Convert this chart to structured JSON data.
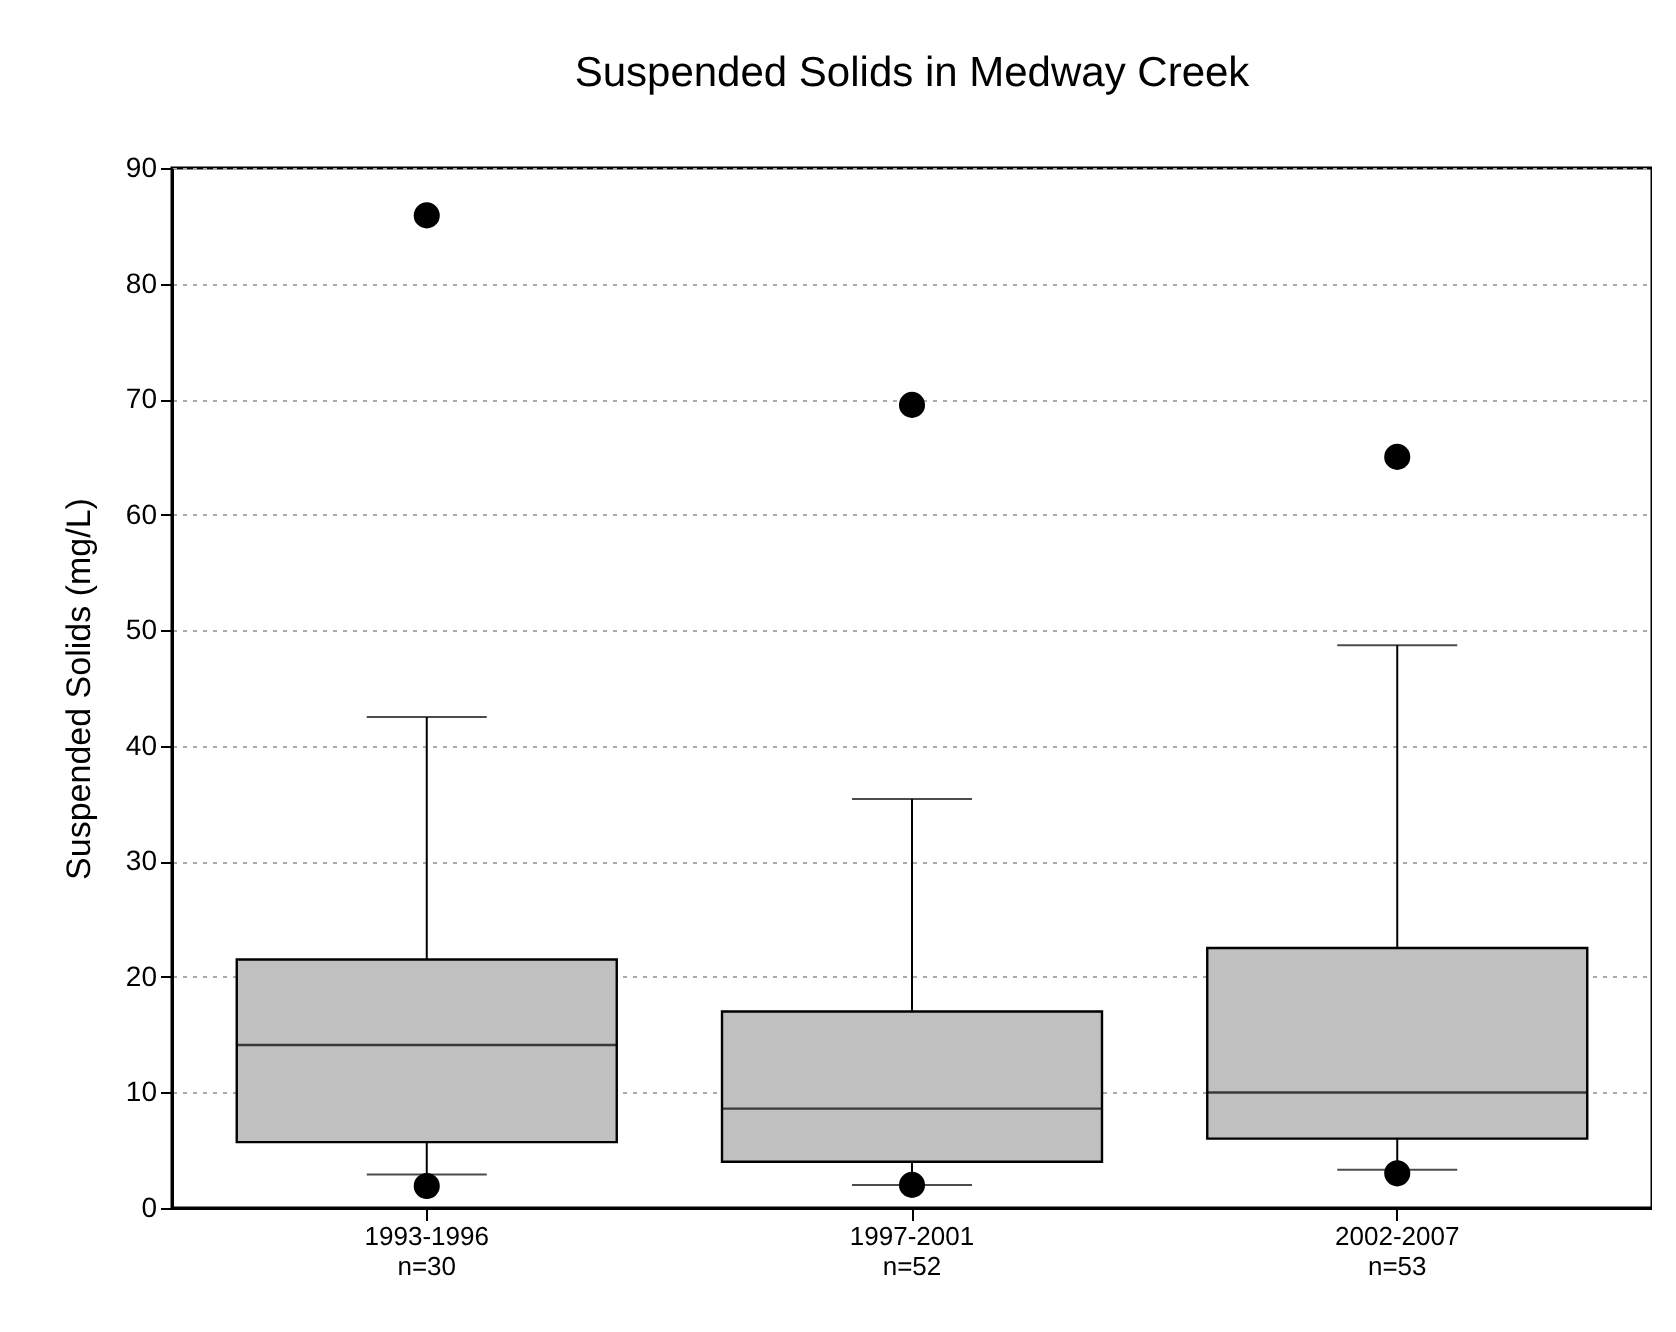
{
  "chart_data": {
    "type": "box",
    "title": "Suspended Solids in Medway Creek",
    "ylabel": "Suspended Solids (mg/L)",
    "categories": [
      "1993-1996\nn=30",
      "1997-2001\nn=52",
      "2002-2007\nn=53"
    ],
    "series": [
      {
        "color": "#c0c0c0",
        "boxes": [
          {
            "low": 2.9,
            "q1": 5.7,
            "median": 14.1,
            "q3": 21.5,
            "high": 42.5,
            "outliers": [
              85.9,
              1.9
            ]
          },
          {
            "low": 2.0,
            "q1": 4.0,
            "median": 8.6,
            "q3": 17.0,
            "high": 35.4,
            "outliers": [
              69.5,
              2.0
            ]
          },
          {
            "low": 3.3,
            "q1": 6.0,
            "median": 10.0,
            "q3": 22.5,
            "high": 48.7,
            "outliers": [
              65.0,
              3.0
            ]
          }
        ]
      }
    ],
    "ylim": [
      0,
      90
    ],
    "yticks": [
      0,
      10,
      20,
      30,
      40,
      50,
      60,
      70,
      80,
      90
    ],
    "grid": "y"
  }
}
